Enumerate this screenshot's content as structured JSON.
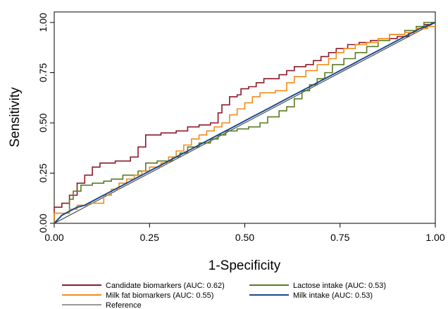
{
  "chart_data": {
    "type": "line",
    "xlabel": "1-Specificity",
    "ylabel": "Sensitivity",
    "xlim": [
      0,
      1
    ],
    "ylim": [
      0,
      1
    ],
    "x_ticks": [
      "0.00",
      "0.25",
      "0.50",
      "0.75",
      "1.00"
    ],
    "y_ticks": [
      "0.00",
      "0.25",
      "0.50",
      "0.75",
      "1.00"
    ],
    "grid": false,
    "legend_position": "bottom",
    "series": [
      {
        "name": "Candidate biomarkers (AUC: 0.62)",
        "color": "#8b1a2b",
        "points": [
          [
            0,
            0
          ],
          [
            0,
            0.08
          ],
          [
            0.02,
            0.08
          ],
          [
            0.02,
            0.1
          ],
          [
            0.04,
            0.1
          ],
          [
            0.04,
            0.14
          ],
          [
            0.06,
            0.14
          ],
          [
            0.06,
            0.2
          ],
          [
            0.08,
            0.2
          ],
          [
            0.08,
            0.24
          ],
          [
            0.1,
            0.24
          ],
          [
            0.1,
            0.28
          ],
          [
            0.12,
            0.28
          ],
          [
            0.12,
            0.3
          ],
          [
            0.16,
            0.3
          ],
          [
            0.16,
            0.31
          ],
          [
            0.2,
            0.31
          ],
          [
            0.2,
            0.33
          ],
          [
            0.22,
            0.33
          ],
          [
            0.22,
            0.38
          ],
          [
            0.24,
            0.38
          ],
          [
            0.24,
            0.44
          ],
          [
            0.28,
            0.44
          ],
          [
            0.28,
            0.45
          ],
          [
            0.32,
            0.45
          ],
          [
            0.32,
            0.46
          ],
          [
            0.35,
            0.46
          ],
          [
            0.35,
            0.48
          ],
          [
            0.38,
            0.48
          ],
          [
            0.38,
            0.49
          ],
          [
            0.41,
            0.49
          ],
          [
            0.41,
            0.5
          ],
          [
            0.43,
            0.5
          ],
          [
            0.43,
            0.55
          ],
          [
            0.44,
            0.55
          ],
          [
            0.44,
            0.59
          ],
          [
            0.46,
            0.59
          ],
          [
            0.46,
            0.63
          ],
          [
            0.48,
            0.63
          ],
          [
            0.48,
            0.64
          ],
          [
            0.49,
            0.64
          ],
          [
            0.49,
            0.67
          ],
          [
            0.51,
            0.67
          ],
          [
            0.51,
            0.68
          ],
          [
            0.53,
            0.68
          ],
          [
            0.53,
            0.7
          ],
          [
            0.55,
            0.7
          ],
          [
            0.55,
            0.72
          ],
          [
            0.59,
            0.72
          ],
          [
            0.59,
            0.74
          ],
          [
            0.61,
            0.74
          ],
          [
            0.61,
            0.76
          ],
          [
            0.63,
            0.76
          ],
          [
            0.63,
            0.78
          ],
          [
            0.66,
            0.78
          ],
          [
            0.66,
            0.79
          ],
          [
            0.68,
            0.79
          ],
          [
            0.68,
            0.81
          ],
          [
            0.7,
            0.81
          ],
          [
            0.7,
            0.83
          ],
          [
            0.72,
            0.83
          ],
          [
            0.72,
            0.85
          ],
          [
            0.74,
            0.85
          ],
          [
            0.74,
            0.87
          ],
          [
            0.77,
            0.87
          ],
          [
            0.77,
            0.89
          ],
          [
            0.8,
            0.89
          ],
          [
            0.8,
            0.9
          ],
          [
            0.83,
            0.9
          ],
          [
            0.83,
            0.91
          ],
          [
            0.88,
            0.91
          ],
          [
            0.88,
            0.92
          ],
          [
            0.9,
            0.92
          ],
          [
            0.9,
            0.93
          ],
          [
            0.93,
            0.93
          ],
          [
            0.93,
            0.95
          ],
          [
            0.95,
            0.95
          ],
          [
            0.95,
            0.97
          ],
          [
            0.97,
            0.97
          ],
          [
            0.97,
            0.99
          ],
          [
            0.99,
            0.99
          ],
          [
            0.99,
            1
          ],
          [
            1,
            1
          ]
        ]
      },
      {
        "name": "Lactose intake (AUC: 0.53)",
        "color": "#5a7a22",
        "points": [
          [
            0,
            0
          ],
          [
            0,
            0.05
          ],
          [
            0.04,
            0.05
          ],
          [
            0.04,
            0.12
          ],
          [
            0.05,
            0.12
          ],
          [
            0.05,
            0.16
          ],
          [
            0.07,
            0.16
          ],
          [
            0.07,
            0.19
          ],
          [
            0.1,
            0.19
          ],
          [
            0.1,
            0.2
          ],
          [
            0.13,
            0.2
          ],
          [
            0.13,
            0.21
          ],
          [
            0.15,
            0.21
          ],
          [
            0.15,
            0.22
          ],
          [
            0.18,
            0.22
          ],
          [
            0.18,
            0.24
          ],
          [
            0.22,
            0.24
          ],
          [
            0.22,
            0.26
          ],
          [
            0.24,
            0.26
          ],
          [
            0.24,
            0.3
          ],
          [
            0.27,
            0.3
          ],
          [
            0.27,
            0.31
          ],
          [
            0.31,
            0.31
          ],
          [
            0.31,
            0.33
          ],
          [
            0.33,
            0.33
          ],
          [
            0.33,
            0.35
          ],
          [
            0.35,
            0.35
          ],
          [
            0.35,
            0.38
          ],
          [
            0.38,
            0.38
          ],
          [
            0.38,
            0.4
          ],
          [
            0.41,
            0.4
          ],
          [
            0.41,
            0.42
          ],
          [
            0.43,
            0.42
          ],
          [
            0.43,
            0.44
          ],
          [
            0.45,
            0.44
          ],
          [
            0.45,
            0.46
          ],
          [
            0.48,
            0.46
          ],
          [
            0.48,
            0.47
          ],
          [
            0.51,
            0.47
          ],
          [
            0.51,
            0.48
          ],
          [
            0.54,
            0.48
          ],
          [
            0.54,
            0.5
          ],
          [
            0.56,
            0.5
          ],
          [
            0.56,
            0.53
          ],
          [
            0.59,
            0.53
          ],
          [
            0.59,
            0.56
          ],
          [
            0.61,
            0.56
          ],
          [
            0.61,
            0.58
          ],
          [
            0.63,
            0.58
          ],
          [
            0.63,
            0.62
          ],
          [
            0.65,
            0.62
          ],
          [
            0.65,
            0.66
          ],
          [
            0.67,
            0.66
          ],
          [
            0.67,
            0.69
          ],
          [
            0.69,
            0.69
          ],
          [
            0.69,
            0.72
          ],
          [
            0.71,
            0.72
          ],
          [
            0.71,
            0.75
          ],
          [
            0.73,
            0.75
          ],
          [
            0.73,
            0.79
          ],
          [
            0.76,
            0.79
          ],
          [
            0.76,
            0.82
          ],
          [
            0.79,
            0.82
          ],
          [
            0.79,
            0.85
          ],
          [
            0.82,
            0.85
          ],
          [
            0.82,
            0.88
          ],
          [
            0.85,
            0.88
          ],
          [
            0.85,
            0.91
          ],
          [
            0.88,
            0.91
          ],
          [
            0.88,
            0.94
          ],
          [
            0.92,
            0.94
          ],
          [
            0.92,
            0.96
          ],
          [
            0.95,
            0.96
          ],
          [
            0.95,
            0.98
          ],
          [
            0.97,
            0.98
          ],
          [
            0.97,
            1
          ],
          [
            1,
            1
          ]
        ]
      },
      {
        "name": "Milk fat biomarkers (AUC: 0.55)",
        "color": "#f08c1a",
        "points": [
          [
            0,
            0
          ],
          [
            0,
            0.05
          ],
          [
            0.04,
            0.05
          ],
          [
            0.04,
            0.07
          ],
          [
            0.06,
            0.07
          ],
          [
            0.06,
            0.09
          ],
          [
            0.09,
            0.09
          ],
          [
            0.09,
            0.1
          ],
          [
            0.13,
            0.1
          ],
          [
            0.13,
            0.14
          ],
          [
            0.15,
            0.14
          ],
          [
            0.15,
            0.17
          ],
          [
            0.17,
            0.17
          ],
          [
            0.17,
            0.2
          ],
          [
            0.19,
            0.2
          ],
          [
            0.19,
            0.22
          ],
          [
            0.21,
            0.22
          ],
          [
            0.21,
            0.24
          ],
          [
            0.23,
            0.24
          ],
          [
            0.23,
            0.26
          ],
          [
            0.25,
            0.26
          ],
          [
            0.25,
            0.28
          ],
          [
            0.28,
            0.28
          ],
          [
            0.28,
            0.3
          ],
          [
            0.3,
            0.3
          ],
          [
            0.3,
            0.33
          ],
          [
            0.32,
            0.33
          ],
          [
            0.32,
            0.36
          ],
          [
            0.34,
            0.36
          ],
          [
            0.34,
            0.39
          ],
          [
            0.36,
            0.39
          ],
          [
            0.36,
            0.42
          ],
          [
            0.38,
            0.42
          ],
          [
            0.38,
            0.44
          ],
          [
            0.4,
            0.44
          ],
          [
            0.4,
            0.46
          ],
          [
            0.42,
            0.46
          ],
          [
            0.42,
            0.48
          ],
          [
            0.44,
            0.48
          ],
          [
            0.44,
            0.5
          ],
          [
            0.46,
            0.5
          ],
          [
            0.46,
            0.54
          ],
          [
            0.48,
            0.54
          ],
          [
            0.48,
            0.57
          ],
          [
            0.5,
            0.57
          ],
          [
            0.5,
            0.6
          ],
          [
            0.52,
            0.6
          ],
          [
            0.52,
            0.63
          ],
          [
            0.54,
            0.63
          ],
          [
            0.54,
            0.65
          ],
          [
            0.58,
            0.65
          ],
          [
            0.58,
            0.66
          ],
          [
            0.61,
            0.66
          ],
          [
            0.61,
            0.7
          ],
          [
            0.63,
            0.7
          ],
          [
            0.63,
            0.73
          ],
          [
            0.66,
            0.73
          ],
          [
            0.66,
            0.76
          ],
          [
            0.69,
            0.76
          ],
          [
            0.69,
            0.79
          ],
          [
            0.72,
            0.79
          ],
          [
            0.72,
            0.82
          ],
          [
            0.74,
            0.82
          ],
          [
            0.74,
            0.85
          ],
          [
            0.76,
            0.85
          ],
          [
            0.76,
            0.87
          ],
          [
            0.79,
            0.87
          ],
          [
            0.79,
            0.89
          ],
          [
            0.82,
            0.89
          ],
          [
            0.82,
            0.9
          ],
          [
            0.85,
            0.9
          ],
          [
            0.85,
            0.92
          ],
          [
            0.88,
            0.92
          ],
          [
            0.88,
            0.94
          ],
          [
            0.92,
            0.94
          ],
          [
            0.92,
            0.95
          ],
          [
            0.95,
            0.95
          ],
          [
            0.95,
            0.97
          ],
          [
            0.98,
            0.97
          ],
          [
            0.98,
            0.98
          ],
          [
            1,
            0.98
          ]
        ]
      },
      {
        "name": "Milk intake (AUC: 0.53)",
        "color": "#1a4a8a",
        "points": [
          [
            0,
            0
          ],
          [
            0.02,
            0.04
          ],
          [
            0.04,
            0.06
          ],
          [
            0.06,
            0.08
          ],
          [
            0.08,
            0.09
          ],
          [
            0.1,
            0.11
          ],
          [
            0.12,
            0.13
          ],
          [
            0.14,
            0.15
          ],
          [
            0.16,
            0.17
          ],
          [
            0.18,
            0.19
          ],
          [
            0.2,
            0.21
          ],
          [
            0.22,
            0.23
          ],
          [
            0.24,
            0.25
          ],
          [
            0.26,
            0.27
          ],
          [
            0.28,
            0.29
          ],
          [
            0.3,
            0.31
          ],
          [
            0.32,
            0.33
          ],
          [
            0.34,
            0.35
          ],
          [
            0.36,
            0.37
          ],
          [
            0.38,
            0.39
          ],
          [
            0.4,
            0.41
          ],
          [
            0.42,
            0.43
          ],
          [
            0.44,
            0.45
          ],
          [
            0.46,
            0.47
          ],
          [
            0.48,
            0.49
          ],
          [
            0.5,
            0.51
          ],
          [
            0.52,
            0.53
          ],
          [
            0.54,
            0.55
          ],
          [
            0.56,
            0.57
          ],
          [
            0.58,
            0.59
          ],
          [
            0.6,
            0.61
          ],
          [
            0.62,
            0.63
          ],
          [
            0.64,
            0.65
          ],
          [
            0.66,
            0.67
          ],
          [
            0.68,
            0.69
          ],
          [
            0.7,
            0.71
          ],
          [
            0.72,
            0.73
          ],
          [
            0.74,
            0.75
          ],
          [
            0.76,
            0.77
          ],
          [
            0.78,
            0.79
          ],
          [
            0.8,
            0.81
          ],
          [
            0.82,
            0.83
          ],
          [
            0.84,
            0.85
          ],
          [
            0.86,
            0.87
          ],
          [
            0.88,
            0.89
          ],
          [
            0.9,
            0.91
          ],
          [
            0.92,
            0.93
          ],
          [
            0.94,
            0.95
          ],
          [
            0.96,
            0.97
          ],
          [
            0.98,
            0.985
          ],
          [
            1,
            1
          ]
        ]
      },
      {
        "name": "Reference",
        "color": "#333333",
        "points": [
          [
            0,
            0
          ],
          [
            1,
            1
          ]
        ]
      }
    ]
  }
}
